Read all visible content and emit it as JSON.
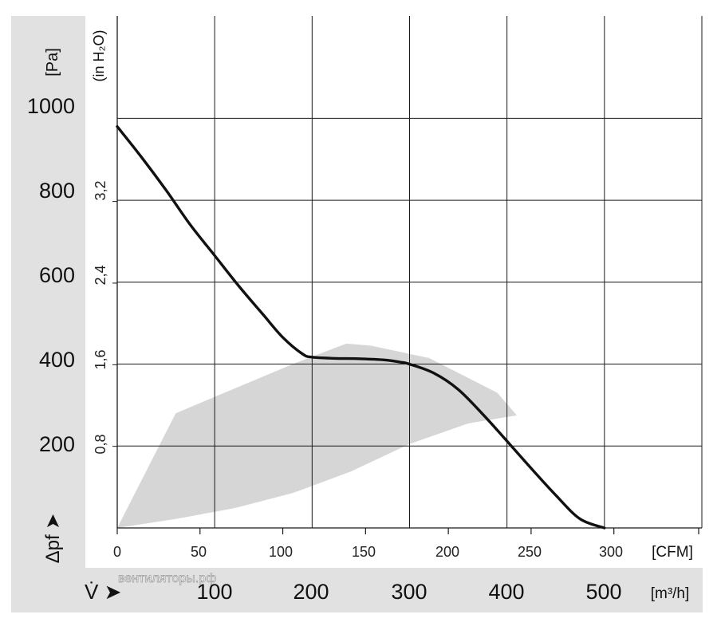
{
  "chart_data": {
    "type": "line",
    "title": "",
    "y_unit_pa": "[Pa]",
    "y_unit_inh2o": "(in H₂O)",
    "y_symbol": "Δpf ➤",
    "x_symbol": "V̇ ➤",
    "x_unit_cfm": "[CFM]",
    "x_unit_m3h": "[m³/h]",
    "x_range_m3h": [
      0,
      600
    ],
    "y_range_pa": [
      0,
      1250
    ],
    "grid": true,
    "y_ticks_pa": [
      "200",
      "400",
      "600",
      "800",
      "1000"
    ],
    "y_ticks_inh2o": [
      "0,8",
      "1,6",
      "2,4",
      "3,2"
    ],
    "x_ticks_cfm": [
      "0",
      "50",
      "100",
      "150",
      "200",
      "250",
      "300"
    ],
    "x_ticks_m3h": [
      "100",
      "200",
      "300",
      "400",
      "500"
    ],
    "series": [
      {
        "x": [
          0,
          25,
          50,
          75,
          100,
          125,
          150,
          170,
          190,
          200,
          225,
          250,
          275,
          290,
          300,
          325,
          350,
          375,
          400,
          425,
          450,
          475,
          500
        ],
        "y": [
          980,
          905,
          825,
          740,
          665,
          590,
          520,
          465,
          425,
          417,
          414,
          413,
          410,
          405,
          400,
          378,
          338,
          278,
          212,
          145,
          80,
          22,
          0
        ]
      }
    ],
    "operating_area": {
      "x": [
        0,
        60,
        120,
        180,
        240,
        300,
        360,
        410,
        390,
        320,
        260,
        235,
        180,
        120,
        60,
        0
      ],
      "y": [
        0,
        22,
        48,
        85,
        138,
        205,
        255,
        275,
        330,
        415,
        445,
        450,
        400,
        340,
        280,
        0
      ]
    },
    "watermark": "вентиляторы.рф"
  },
  "colors": {
    "band": "#e1e1e1",
    "curve": "#111111",
    "grid": "#1a1a1a",
    "area": "#d6d6d6"
  }
}
